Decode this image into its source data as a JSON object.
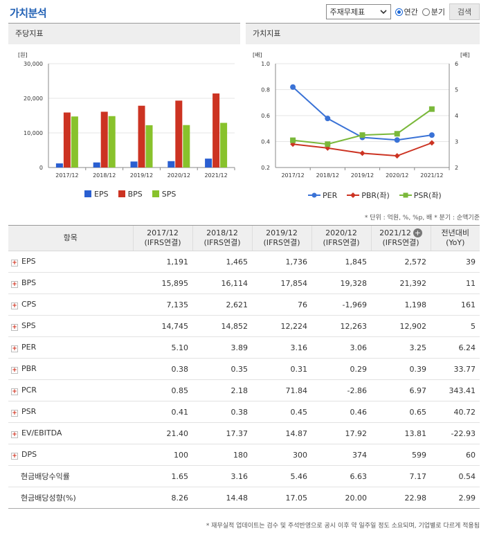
{
  "title": "가치분석",
  "controls": {
    "select_value": "주재무제표",
    "radio_annual": "연간",
    "radio_quarter": "분기",
    "search_button": "검색"
  },
  "left_panel": {
    "title": "주당지표"
  },
  "right_panel": {
    "title": "가치지표"
  },
  "colors": {
    "EPS": "#2a5fd1",
    "BPS": "#cc3322",
    "SPS": "#88c22c",
    "PER": "#3a72d6",
    "PBR": "#cc3322",
    "PSR": "#7ab83a"
  },
  "chart_data": [
    {
      "type": "bar",
      "ylabel": "[원]",
      "ylim": [
        0,
        30000
      ],
      "yticks": [
        "0",
        "10,000",
        "20,000",
        "30,000"
      ],
      "categories": [
        "2017/12",
        "2018/12",
        "2019/12",
        "2020/12",
        "2021/12"
      ],
      "series": [
        {
          "name": "EPS",
          "values": [
            1191,
            1465,
            1736,
            1845,
            2572
          ]
        },
        {
          "name": "BPS",
          "values": [
            15895,
            16114,
            17854,
            19328,
            21392
          ]
        },
        {
          "name": "SPS",
          "values": [
            14745,
            14852,
            12224,
            12263,
            12902
          ]
        }
      ],
      "legend": "bottom"
    },
    {
      "type": "line",
      "ylabel_left": "[배]",
      "ylabel_right": "[배]",
      "ylim_left": [
        0.2,
        1.0
      ],
      "yticks_left": [
        "0.2",
        "0.4",
        "0.6",
        "0.8",
        "1.0"
      ],
      "ylim_right": [
        2,
        6
      ],
      "yticks_right": [
        "2",
        "3",
        "4",
        "5",
        "6"
      ],
      "categories": [
        "2017/12",
        "2018/12",
        "2019/12",
        "2020/12",
        "2021/12"
      ],
      "series": [
        {
          "name": "PER",
          "axis": "right",
          "values": [
            5.1,
            3.89,
            3.16,
            3.06,
            3.25
          ]
        },
        {
          "name": "PBR(좌)",
          "axis": "left",
          "values": [
            0.38,
            0.35,
            0.31,
            0.29,
            0.39
          ]
        },
        {
          "name": "PSR(좌)",
          "axis": "left",
          "values": [
            0.41,
            0.38,
            0.45,
            0.46,
            0.65
          ]
        }
      ],
      "legend": "bottom"
    }
  ],
  "note_units": "* 단위 : 억원, %, %p, 배   * 분기 : 순액기준",
  "table": {
    "headers": [
      {
        "line1": "항목",
        "line2": ""
      },
      {
        "line1": "2017/12",
        "line2": "(IFRS연결)"
      },
      {
        "line1": "2018/12",
        "line2": "(IFRS연결)"
      },
      {
        "line1": "2019/12",
        "line2": "(IFRS연결)"
      },
      {
        "line1": "2020/12",
        "line2": "(IFRS연결)"
      },
      {
        "line1": "2021/12",
        "line2": "(IFRS연결)"
      },
      {
        "line1": "전년대비",
        "line2": "(YoY)"
      }
    ],
    "rows": [
      {
        "label": "EPS",
        "expand": true,
        "cells": [
          "1,191",
          "1,465",
          "1,736",
          "1,845",
          "2,572",
          "39"
        ]
      },
      {
        "label": "BPS",
        "expand": true,
        "cells": [
          "15,895",
          "16,114",
          "17,854",
          "19,328",
          "21,392",
          "11"
        ]
      },
      {
        "label": "CPS",
        "expand": true,
        "cells": [
          "7,135",
          "2,621",
          "76",
          "-1,969",
          "1,198",
          "161"
        ]
      },
      {
        "label": "SPS",
        "expand": true,
        "cells": [
          "14,745",
          "14,852",
          "12,224",
          "12,263",
          "12,902",
          "5"
        ]
      },
      {
        "label": "PER",
        "expand": true,
        "cells": [
          "5.10",
          "3.89",
          "3.16",
          "3.06",
          "3.25",
          "6.24"
        ]
      },
      {
        "label": "PBR",
        "expand": true,
        "cells": [
          "0.38",
          "0.35",
          "0.31",
          "0.29",
          "0.39",
          "33.77"
        ]
      },
      {
        "label": "PCR",
        "expand": true,
        "cells": [
          "0.85",
          "2.18",
          "71.84",
          "-2.86",
          "6.97",
          "343.41"
        ]
      },
      {
        "label": "PSR",
        "expand": true,
        "cells": [
          "0.41",
          "0.38",
          "0.45",
          "0.46",
          "0.65",
          "40.72"
        ]
      },
      {
        "label": "EV/EBITDA",
        "expand": true,
        "cells": [
          "21.40",
          "17.37",
          "14.87",
          "17.92",
          "13.81",
          "-22.93"
        ]
      },
      {
        "label": "DPS",
        "expand": true,
        "cells": [
          "100",
          "180",
          "300",
          "374",
          "599",
          "60"
        ]
      },
      {
        "label": "현금배당수익률",
        "expand": false,
        "cells": [
          "1.65",
          "3.16",
          "5.46",
          "6.63",
          "7.17",
          "0.54"
        ]
      },
      {
        "label": "현금배당성향(%)",
        "expand": false,
        "cells": [
          "8.26",
          "14.48",
          "17.05",
          "20.00",
          "22.98",
          "2.99"
        ]
      }
    ]
  },
  "note_footer": "* 재무실적 업데이트는 검수 및 주석반영으로 공시 이후 약 일주일 정도 소요되며, 기업별로 다르게 적용됨"
}
